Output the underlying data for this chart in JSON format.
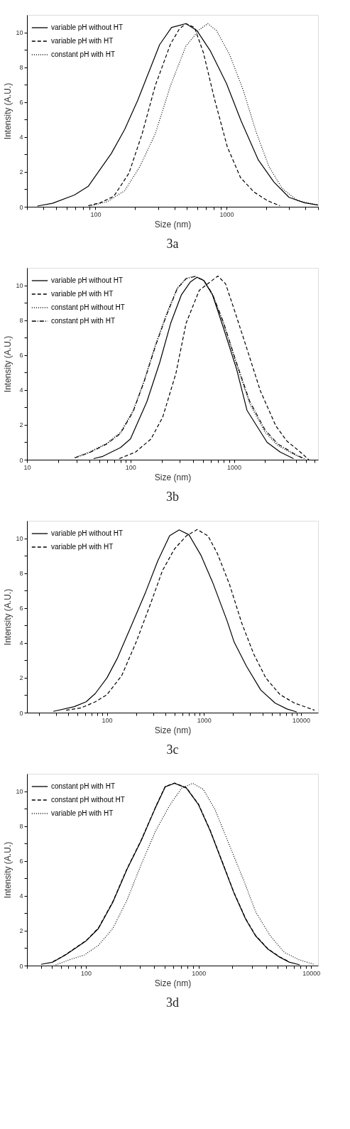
{
  "chart_data": [
    {
      "type": "line",
      "annotations": [
        "3a"
      ],
      "xlabel": "Size (nm)",
      "ylabel": "Intensity (A.U.)",
      "log": "x",
      "legend": "top left",
      "xlim": [
        30,
        5000
      ],
      "ylim": [
        0,
        11
      ],
      "xticks": [
        {
          "value": 30,
          "label": null
        },
        {
          "value": 40,
          "label": null
        },
        {
          "value": 50,
          "label": null
        },
        {
          "value": 60,
          "label": null
        },
        {
          "value": 70,
          "label": null
        },
        {
          "value": 80,
          "label": null
        },
        {
          "value": 90,
          "label": null
        },
        100,
        {
          "value": 200,
          "label": null
        },
        {
          "value": 300,
          "label": null
        },
        {
          "value": 400,
          "label": null
        },
        {
          "value": 500,
          "label": null
        },
        {
          "value": 600,
          "label": null
        },
        {
          "value": 700,
          "label": null
        },
        {
          "value": 800,
          "label": null
        },
        {
          "value": 900,
          "label": null
        },
        1000,
        {
          "value": 2000,
          "label": null
        },
        {
          "value": 3000,
          "label": null
        },
        {
          "value": 4000,
          "label": null
        },
        {
          "value": 5000,
          "label": null
        }
      ],
      "yticks": [
        0,
        {
          "value": 1,
          "label": null
        },
        2,
        {
          "value": 3,
          "label": null
        },
        4,
        {
          "value": 5,
          "label": null
        },
        6,
        {
          "value": 7,
          "label": null
        },
        8,
        {
          "value": 9,
          "label": null
        },
        10
      ],
      "series": [
        {
          "name": "variable pH without HT",
          "color": "#000000",
          "line_style": "solid",
          "x": [
            36,
            47,
            69,
            88,
            132,
            167,
            210,
            309,
            381,
            490,
            595,
            750,
            1000,
            1290,
            1750,
            2300,
            3000,
            3940,
            5000
          ],
          "values": [
            0.04,
            0.2,
            0.67,
            1.17,
            3.05,
            4.43,
            6.1,
            9.3,
            10.28,
            10.5,
            10.1,
            8.96,
            7.07,
            4.94,
            2.68,
            1.42,
            0.54,
            0.23,
            0.1
          ]
        },
        {
          "name": "variable pH with HT",
          "color": "#000000",
          "line_style": "dashed",
          "x": [
            88,
            109,
            138,
            180,
            227,
            286,
            374,
            437,
            490,
            570,
            667,
            809,
            1015,
            1280,
            1620,
            2050,
            2560
          ],
          "values": [
            0.06,
            0.23,
            0.6,
            1.92,
            4.18,
            6.95,
            9.33,
            10.2,
            10.5,
            10.28,
            8.83,
            6.19,
            3.43,
            1.67,
            0.85,
            0.35,
            0.06
          ]
        },
        {
          "name": "constant pH with HT",
          "color": "#000000",
          "line_style": "dotted",
          "x": [
            90,
            123,
            167,
            218,
            286,
            374,
            490,
            620,
            720,
            840,
            1060,
            1340,
            1680,
            2110,
            2670,
            3490,
            5000
          ],
          "values": [
            0.04,
            0.29,
            0.92,
            2.3,
            4.18,
            6.95,
            9.21,
            10.15,
            10.5,
            10.1,
            8.7,
            6.7,
            4.31,
            2.3,
            1.04,
            0.35,
            0.1
          ]
        }
      ]
    },
    {
      "type": "line",
      "annotations": [
        "3b"
      ],
      "xlabel": "Size (nm)",
      "ylabel": "Intensity (A.U.)",
      "log": "x",
      "legend": "top left",
      "xlim": [
        10,
        6500
      ],
      "ylim": [
        0,
        11
      ],
      "xticks": [
        10,
        {
          "value": 20,
          "label": null
        },
        {
          "value": 30,
          "label": null
        },
        {
          "value": 40,
          "label": null
        },
        {
          "value": 50,
          "label": null
        },
        {
          "value": 60,
          "label": null
        },
        {
          "value": 70,
          "label": null
        },
        {
          "value": 80,
          "label": null
        },
        {
          "value": 90,
          "label": null
        },
        100,
        {
          "value": 200,
          "label": null
        },
        {
          "value": 300,
          "label": null
        },
        {
          "value": 400,
          "label": null
        },
        {
          "value": 500,
          "label": null
        },
        {
          "value": 600,
          "label": null
        },
        {
          "value": 700,
          "label": null
        },
        {
          "value": 800,
          "label": null
        },
        {
          "value": 900,
          "label": null
        },
        1000,
        {
          "value": 2000,
          "label": null
        },
        {
          "value": 3000,
          "label": null
        },
        {
          "value": 4000,
          "label": null
        },
        {
          "value": 5000,
          "label": null
        },
        {
          "value": 6000,
          "label": null
        }
      ],
      "yticks": [
        0,
        {
          "value": 1,
          "label": null
        },
        2,
        {
          "value": 3,
          "label": null
        },
        4,
        {
          "value": 5,
          "label": null
        },
        6,
        {
          "value": 7,
          "label": null
        },
        8,
        {
          "value": 9,
          "label": null
        },
        10
      ],
      "series": [
        {
          "name": "variable pH without HT",
          "color": "#000000",
          "line_style": "solid",
          "x": [
            44,
            54,
            80,
            100,
            144,
            192,
            245,
            311,
            380,
            440,
            510,
            620,
            790,
            1060,
            1340,
            2090,
            2800,
            3770
          ],
          "values": [
            0.06,
            0.19,
            0.69,
            1.19,
            3.32,
            5.58,
            7.83,
            9.46,
            10.2,
            10.46,
            10.28,
            9.46,
            7.58,
            5.2,
            2.82,
            1.0,
            0.44,
            0.06
          ]
        },
        {
          "name": "variable pH with HT",
          "color": "#000000",
          "line_style": "dashed",
          "x": [
            78,
            112,
            158,
            205,
            275,
            345,
            462,
            590,
            700,
            830,
            1010,
            1340,
            1800,
            2540,
            3250,
            4380,
            5300
          ],
          "values": [
            0.06,
            0.44,
            1.19,
            2.44,
            4.95,
            7.83,
            9.71,
            10.2,
            10.53,
            10.09,
            8.58,
            6.33,
            3.95,
            1.94,
            1.07,
            0.44,
            0.0
          ]
        },
        {
          "name": "constant pH without HT",
          "color": "#000000",
          "line_style": "dotted",
          "x": [
            29,
            40,
            59,
            80,
            106,
            136,
            174,
            222,
            283,
            345,
            418,
            510,
            620,
            790,
            1060,
            1420,
            2000,
            2660,
            3930,
            4800
          ],
          "values": [
            0.13,
            0.44,
            0.94,
            1.57,
            2.82,
            4.57,
            6.58,
            8.33,
            9.84,
            10.4,
            10.53,
            10.28,
            9.46,
            7.83,
            5.45,
            3.2,
            1.57,
            0.81,
            0.25,
            0.06
          ]
        },
        {
          "name": "constant pH with HT",
          "color": "#000000",
          "line_style": "dashdot",
          "x": [
            29,
            40,
            59,
            80,
            106,
            136,
            174,
            222,
            283,
            345,
            418,
            510,
            620,
            790,
            1060,
            1420,
            2000,
            2660,
            3930,
            4600
          ],
          "values": [
            0.1,
            0.4,
            0.9,
            1.5,
            2.75,
            4.5,
            6.5,
            8.25,
            9.8,
            10.38,
            10.5,
            10.3,
            9.5,
            7.9,
            5.55,
            3.35,
            1.7,
            0.9,
            0.3,
            0.1
          ]
        }
      ]
    },
    {
      "type": "line",
      "annotations": [
        "3c"
      ],
      "xlabel": "Size (nm)",
      "ylabel": "Intensity (A.U.)",
      "log": "x",
      "legend": "top left",
      "xlim": [
        15,
        15000
      ],
      "ylim": [
        0,
        11
      ],
      "xticks": [
        {
          "value": 20,
          "label": null
        },
        {
          "value": 30,
          "label": null
        },
        {
          "value": 40,
          "label": null
        },
        {
          "value": 50,
          "label": null
        },
        {
          "value": 60,
          "label": null
        },
        {
          "value": 70,
          "label": null
        },
        {
          "value": 80,
          "label": null
        },
        {
          "value": 90,
          "label": null
        },
        100,
        {
          "value": 200,
          "label": null
        },
        {
          "value": 300,
          "label": null
        },
        {
          "value": 400,
          "label": null
        },
        {
          "value": 500,
          "label": null
        },
        {
          "value": 600,
          "label": null
        },
        {
          "value": 700,
          "label": null
        },
        {
          "value": 800,
          "label": null
        },
        {
          "value": 900,
          "label": null
        },
        1000,
        {
          "value": 2000,
          "label": null
        },
        {
          "value": 3000,
          "label": null
        },
        {
          "value": 4000,
          "label": null
        },
        {
          "value": 5000,
          "label": null
        },
        {
          "value": 6000,
          "label": null
        },
        {
          "value": 7000,
          "label": null
        },
        {
          "value": 8000,
          "label": null
        },
        {
          "value": 9000,
          "label": null
        },
        10000
      ],
      "yticks": [
        0,
        {
          "value": 1,
          "label": null
        },
        2,
        {
          "value": 3,
          "label": null
        },
        4,
        {
          "value": 5,
          "label": null
        },
        6,
        {
          "value": 7,
          "label": null
        },
        8,
        {
          "value": 9,
          "label": null
        },
        10
      ],
      "series": [
        {
          "name": "variable pH without HT",
          "color": "#000000",
          "line_style": "solid",
          "x": [
            28,
            46,
            61,
            76,
            100,
            127,
            179,
            251,
            334,
            443,
            556,
            700,
            928,
            1230,
            1730,
            2050,
            2740,
            3850,
            5410,
            7180,
            9030
          ],
          "values": [
            0.07,
            0.34,
            0.62,
            1.1,
            1.99,
            3.08,
            5.0,
            6.92,
            8.7,
            10.14,
            10.48,
            10.2,
            9.04,
            7.47,
            5.27,
            4.04,
            2.67,
            1.3,
            0.55,
            0.21,
            0.04
          ]
        },
        {
          "name": "variable pH with HT",
          "color": "#000000",
          "line_style": "dashed",
          "x": [
            38,
            54,
            76,
            100,
            142,
            200,
            281,
            374,
            496,
            660,
            853,
            1100,
            1380,
            1840,
            2450,
            3260,
            4340,
            6090,
            8560,
            13800
          ],
          "values": [
            0.14,
            0.27,
            0.62,
            1.03,
            2.12,
            4.04,
            6.23,
            8.15,
            9.38,
            10.14,
            10.5,
            10.14,
            9.11,
            7.33,
            5.14,
            3.36,
            1.99,
            1.03,
            0.55,
            0.14
          ]
        }
      ]
    },
    {
      "type": "line",
      "annotations": [
        "3d"
      ],
      "xlabel": "Size (nm)",
      "ylabel": "Intensity (A.U.)",
      "log": "x",
      "legend": "top left",
      "xlim": [
        30,
        11500
      ],
      "ylim": [
        0,
        11
      ],
      "xticks": [
        {
          "value": 30,
          "label": null
        },
        {
          "value": 40,
          "label": null
        },
        {
          "value": 50,
          "label": null
        },
        {
          "value": 60,
          "label": null
        },
        {
          "value": 70,
          "label": null
        },
        {
          "value": 80,
          "label": null
        },
        {
          "value": 90,
          "label": null
        },
        100,
        {
          "value": 200,
          "label": null
        },
        {
          "value": 300,
          "label": null
        },
        {
          "value": 400,
          "label": null
        },
        {
          "value": 500,
          "label": null
        },
        {
          "value": 600,
          "label": null
        },
        {
          "value": 700,
          "label": null
        },
        {
          "value": 800,
          "label": null
        },
        {
          "value": 900,
          "label": null
        },
        1000,
        {
          "value": 2000,
          "label": null
        },
        {
          "value": 3000,
          "label": null
        },
        {
          "value": 4000,
          "label": null
        },
        {
          "value": 5000,
          "label": null
        },
        {
          "value": 6000,
          "label": null
        },
        {
          "value": 7000,
          "label": null
        },
        {
          "value": 8000,
          "label": null
        },
        {
          "value": 9000,
          "label": null
        },
        10000
      ],
      "yticks": [
        0,
        {
          "value": 1,
          "label": null
        },
        2,
        {
          "value": 3,
          "label": null
        },
        4,
        {
          "value": 5,
          "label": null
        },
        6,
        {
          "value": 7,
          "label": null
        },
        8,
        {
          "value": 9,
          "label": null
        },
        10
      ],
      "series": [
        {
          "name": "constant pH with HT",
          "color": "#000000",
          "line_style": "solid",
          "x": [
            40,
            51,
            66,
            88,
            101,
            129,
            173,
            232,
            310,
            416,
            506,
            613,
            780,
            1000,
            1270,
            1620,
            2060,
            2620,
            3200,
            4100,
            5250,
            6380,
            7920
          ],
          "values": [
            0.07,
            0.2,
            0.61,
            1.16,
            1.43,
            2.12,
            3.62,
            5.53,
            7.17,
            9.08,
            10.25,
            10.45,
            10.18,
            9.22,
            7.72,
            5.94,
            4.17,
            2.66,
            1.71,
            0.96,
            0.48,
            0.2,
            0.04
          ]
        },
        {
          "name": "constant pH without HT",
          "color": "#000000",
          "line_style": "dashed",
          "x": [
            51,
            66,
            88,
            101,
            129,
            173,
            232,
            310,
            416,
            506,
            613,
            780,
            1000,
            1270,
            1620,
            2060,
            2620,
            3200,
            4100,
            5250,
            6380
          ],
          "values": [
            0.22,
            0.63,
            1.18,
            1.45,
            2.15,
            3.65,
            5.56,
            7.2,
            9.1,
            10.27,
            10.47,
            10.2,
            9.25,
            7.75,
            5.97,
            4.2,
            2.69,
            1.74,
            0.98,
            0.5,
            0.22
          ]
        },
        {
          "name": "variable pH with HT",
          "color": "#000000",
          "line_style": "dotted",
          "x": [
            54,
            72,
            97,
            129,
            173,
            232,
            310,
            416,
            558,
            710,
            886,
            1100,
            1400,
            1880,
            2530,
            3220,
            4320,
            5790,
            7770,
            10600
          ],
          "values": [
            0.04,
            0.34,
            0.61,
            1.16,
            2.12,
            3.76,
            5.81,
            7.72,
            9.22,
            10.18,
            10.45,
            10.11,
            8.95,
            6.9,
            4.85,
            3.07,
            1.71,
            0.75,
            0.34,
            0.07
          ]
        }
      ]
    }
  ]
}
